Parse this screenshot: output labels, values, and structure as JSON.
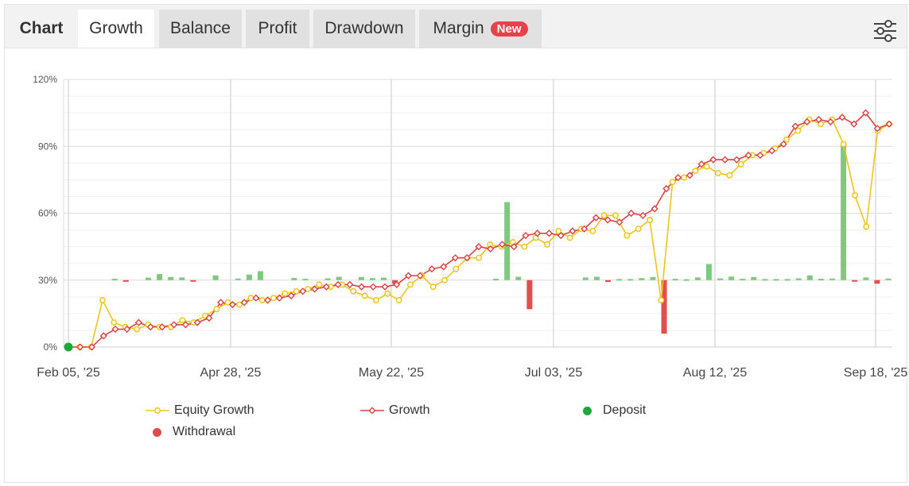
{
  "tabs": [
    {
      "label": "Chart",
      "kind": "label"
    },
    {
      "label": "Growth",
      "kind": "active"
    },
    {
      "label": "Balance",
      "kind": "normal"
    },
    {
      "label": "Profit",
      "kind": "normal"
    },
    {
      "label": "Drawdown",
      "kind": "normal"
    },
    {
      "label": "Margin",
      "kind": "normal",
      "badge": "New"
    }
  ],
  "settings_icon": "sliders-icon",
  "colors": {
    "equity": "#f0c419",
    "growth": "#d94343",
    "deposit": "#1ea83c",
    "withdrawal": "#e04b4b",
    "bar_positive": "#7fc97f",
    "bar_negative": "#e74c4c",
    "badge": "#e8414a"
  },
  "chart_data": {
    "type": "line",
    "y_ticks": [
      "0%",
      "30%",
      "60%",
      "90%",
      "120%"
    ],
    "ylim": [
      0,
      120
    ],
    "x_ticks": [
      "Feb 05, '25",
      "Apr 28, '25",
      "May 22, '25",
      "Jul 03, '25",
      "Aug 12, '25",
      "Sep 18, '25"
    ],
    "grid": true,
    "legend_position": "bottom",
    "series": [
      {
        "name": "Equity Growth",
        "values": [
          0,
          0,
          0,
          21,
          11,
          9,
          8,
          10,
          9,
          9,
          12,
          11,
          14,
          17,
          20,
          19,
          22,
          21,
          22,
          24,
          25,
          26,
          28,
          27,
          28,
          25,
          23,
          21,
          24,
          21,
          28,
          32,
          27,
          30,
          35,
          40,
          40,
          46,
          45,
          47,
          45,
          49,
          46,
          52,
          49,
          53,
          52,
          59,
          59,
          50,
          53,
          57,
          21,
          74,
          76,
          79,
          81,
          78,
          77,
          82,
          86,
          87,
          89,
          93,
          97,
          102,
          100,
          102,
          91,
          68,
          54,
          97,
          100
        ]
      },
      {
        "name": "Growth",
        "values": [
          0,
          0,
          0,
          5,
          8,
          8,
          11,
          9,
          9,
          10,
          10,
          11,
          13,
          20,
          19,
          20,
          22,
          21,
          22,
          23,
          25,
          26,
          27,
          28,
          28,
          27,
          27,
          27,
          28,
          32,
          32,
          35,
          36,
          40,
          40,
          45,
          44,
          46,
          45,
          50,
          51,
          51,
          50,
          52,
          53,
          58,
          57,
          56,
          60,
          59,
          62,
          71,
          76,
          77,
          82,
          84,
          84,
          84,
          86,
          86,
          88,
          91,
          99,
          101,
          102,
          101,
          103,
          100,
          105,
          98,
          100
        ]
      }
    ],
    "bars": [
      0,
      0,
      0.6,
      -0.4,
      0,
      1.1,
      2.7,
      1.4,
      1.2,
      -0.5,
      0,
      2.1,
      0,
      0.7,
      2.5,
      4.0,
      0,
      0,
      1.0,
      0.6,
      0,
      0.8,
      1.5,
      0,
      1.4,
      0.9,
      1.1,
      -1.7,
      0,
      0,
      0,
      0,
      0,
      0,
      0,
      0,
      0.6,
      35,
      1.5,
      -13,
      0,
      0,
      0,
      0,
      1.2,
      1.5,
      -0.8,
      0.5,
      0.5,
      0.9,
      1.4,
      -24,
      0.6,
      0.4,
      1.2,
      7.2,
      0.8,
      1.6,
      0.6,
      1.4,
      0.5,
      0.5,
      0.5,
      0.8,
      2.1,
      0.6,
      0.7,
      61,
      -0.4,
      1.2,
      -1.6,
      0.7
    ],
    "points": [
      {
        "series": "Deposit",
        "index": 0,
        "value": 0
      }
    ]
  },
  "legend": [
    {
      "label": "Equity Growth",
      "type": "line",
      "color": "#f0c419"
    },
    {
      "label": "Growth",
      "type": "line",
      "color": "#d94343"
    },
    {
      "label": "Deposit",
      "type": "dot",
      "color": "#1ea83c"
    },
    {
      "label": "Withdrawal",
      "type": "dot",
      "color": "#e04b4b"
    }
  ]
}
